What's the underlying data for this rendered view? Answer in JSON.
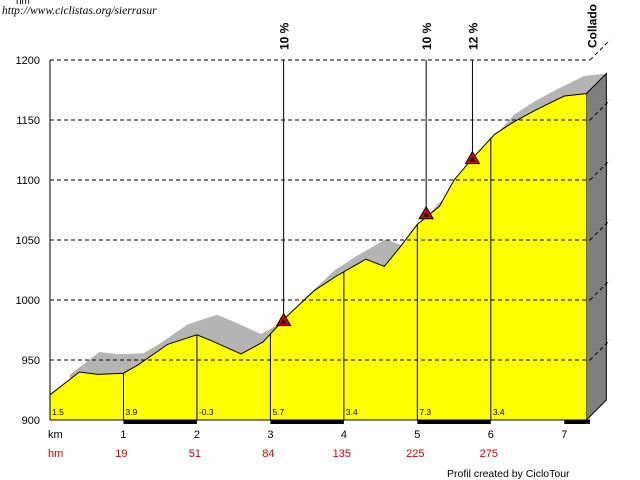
{
  "header": {
    "unit_label": "hm",
    "url_text": "http://www.ciclistas.org/sierrasur"
  },
  "footer": {
    "credit": "Profil created by CicloTour"
  },
  "chart_data": {
    "type": "area",
    "title": "",
    "xlabel": "km",
    "ylabel": "",
    "xlim": [
      0,
      7.35
    ],
    "ylim": [
      900,
      1200
    ],
    "grid": true,
    "y_ticks": [
      900,
      950,
      1000,
      1050,
      1100,
      1150,
      1200
    ],
    "x_ticks": [
      1,
      2,
      3,
      4,
      5,
      6,
      7
    ],
    "x_tick_labels": [
      "1",
      "2",
      "3",
      "4",
      "5",
      "6",
      "7"
    ],
    "x_unit_label": "km",
    "hm_unit_label": "hm",
    "hm_labels": [
      {
        "x": 0.7,
        "value": "19"
      },
      {
        "x": 1.7,
        "value": "51"
      },
      {
        "x": 2.7,
        "value": "84"
      },
      {
        "x": 3.7,
        "value": "135"
      },
      {
        "x": 4.7,
        "value": "225"
      },
      {
        "x": 5.7,
        "value": "275"
      }
    ],
    "series": [
      {
        "values_x": [
          0,
          0.4,
          0.65,
          1.0,
          1.2,
          1.6,
          2.0,
          2.2,
          2.6,
          2.9,
          3.2,
          3.6,
          3.9,
          4.1,
          4.3,
          4.55,
          4.75,
          5.0,
          5.3,
          5.5,
          5.75,
          6.05,
          6.3,
          6.6,
          6.9,
          7.0,
          7.3
        ],
        "values_y": [
          921,
          940,
          938,
          939,
          946,
          963,
          971,
          966,
          955,
          965,
          985,
          1008,
          1020,
          1027,
          1034,
          1028,
          1043,
          1063,
          1078,
          1100,
          1118,
          1138,
          1148,
          1158,
          1167,
          1170,
          1172
        ]
      }
    ],
    "gradient_segments": [
      {
        "start_x": 0.0,
        "value": "1.5"
      },
      {
        "start_x": 1.0,
        "value": "3.9"
      },
      {
        "start_x": 2.0,
        "value": "-0.3"
      },
      {
        "start_x": 3.0,
        "value": "5.7"
      },
      {
        "start_x": 4.0,
        "value": "3.4"
      },
      {
        "start_x": 5.0,
        "value": "7.3"
      },
      {
        "start_x": 6.0,
        "value": "3.4"
      }
    ],
    "steep_markers": [
      {
        "x": 3.18,
        "y": 982,
        "label": "10 %"
      },
      {
        "x": 5.12,
        "y": 1071,
        "label": "10 %"
      },
      {
        "x": 5.75,
        "y": 1117,
        "label": "12 %"
      }
    ],
    "summit": {
      "x": 7.3,
      "label": "Collado"
    },
    "colors": {
      "fill": "#ffff00",
      "outline": "#000000",
      "shadow": "#b4b4b4",
      "side": "#7f7f7f",
      "hm_text": "#cc0000",
      "marker": "#e00000",
      "grid": "#000000"
    }
  }
}
